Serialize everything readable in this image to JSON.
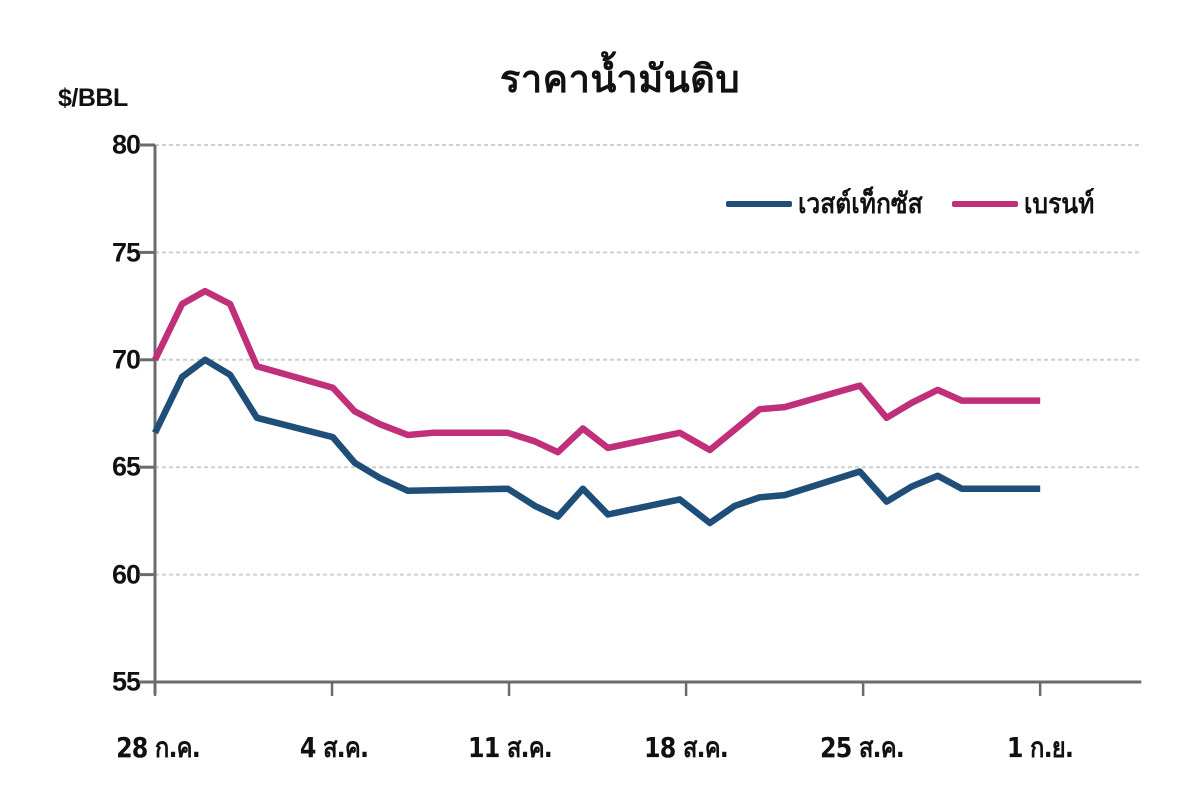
{
  "chart_data": {
    "type": "line",
    "title": "ราคาน้ำมันดิบ",
    "ylabel": "$/BBL",
    "xlabel": "",
    "ylim": [
      55,
      80
    ],
    "yticks": [
      80,
      75,
      70,
      65,
      60,
      55
    ],
    "xticks": [
      {
        "label": "28 ก.ค.",
        "day": 0
      },
      {
        "label": "4 ส.ค.",
        "day": 7
      },
      {
        "label": "11 ส.ค.",
        "day": 14
      },
      {
        "label": "18 ส.ค.",
        "day": 21
      },
      {
        "label": "25 ส.ค.",
        "day": 28
      },
      {
        "label": "1 ก.ย.",
        "day": 35
      }
    ],
    "xlim_days": [
      0,
      39
    ],
    "grid": "horizontal dashed",
    "legend_position": "top-right",
    "series": [
      {
        "name": "เวสต์เท็กซัส",
        "color": "#1f4e79",
        "points": [
          [
            0,
            66.6
          ],
          [
            1.07,
            69.2
          ],
          [
            1.98,
            70.0
          ],
          [
            2.97,
            69.3
          ],
          [
            4.03,
            67.3
          ],
          [
            7.03,
            66.4
          ],
          [
            7.9,
            65.2
          ],
          [
            8.89,
            64.5
          ],
          [
            10.0,
            63.9
          ],
          [
            13.95,
            64.0
          ],
          [
            15.02,
            63.2
          ],
          [
            15.93,
            62.7
          ],
          [
            16.92,
            64.0
          ],
          [
            17.91,
            62.8
          ],
          [
            20.75,
            63.5
          ],
          [
            21.94,
            62.4
          ],
          [
            22.92,
            63.2
          ],
          [
            23.91,
            63.6
          ],
          [
            24.9,
            63.7
          ],
          [
            27.87,
            64.8
          ],
          [
            28.93,
            63.4
          ],
          [
            29.92,
            64.1
          ],
          [
            30.95,
            64.6
          ],
          [
            31.9,
            64.0
          ],
          [
            35.0,
            64.0
          ]
        ]
      },
      {
        "name": "เบรนท์",
        "color": "#c0307a",
        "points": [
          [
            0,
            70.0
          ],
          [
            1.07,
            72.6
          ],
          [
            1.98,
            73.2
          ],
          [
            2.97,
            72.6
          ],
          [
            4.03,
            69.7
          ],
          [
            7.03,
            68.7
          ],
          [
            7.9,
            67.6
          ],
          [
            8.89,
            67.0
          ],
          [
            10.0,
            66.5
          ],
          [
            10.98,
            66.6
          ],
          [
            13.95,
            66.6
          ],
          [
            15.02,
            66.2
          ],
          [
            15.93,
            65.7
          ],
          [
            16.92,
            66.8
          ],
          [
            17.91,
            65.9
          ],
          [
            20.75,
            66.6
          ],
          [
            21.94,
            65.8
          ],
          [
            23.91,
            67.7
          ],
          [
            24.9,
            67.8
          ],
          [
            27.87,
            68.8
          ],
          [
            28.93,
            67.3
          ],
          [
            29.92,
            68.0
          ],
          [
            30.95,
            68.6
          ],
          [
            31.9,
            68.1
          ],
          [
            35.0,
            68.1
          ]
        ]
      }
    ]
  },
  "labels": {
    "title": "ราคาน้ำมันดิบ",
    "unit": "$/BBL",
    "y": [
      "80",
      "75",
      "70",
      "65",
      "60",
      "55"
    ],
    "x": [
      "28 ก.ค.",
      "4 ส.ค.",
      "11 ส.ค.",
      "18 ส.ค.",
      "25 ส.ค.",
      "1 ก.ย."
    ],
    "legend": [
      "เวสต์เท็กซัส",
      "เบรนท์"
    ]
  },
  "colors": {
    "wti": "#1f4e79",
    "brent": "#c0307a",
    "axis": "#6b6b6b",
    "grid": "#cfcfcf"
  }
}
